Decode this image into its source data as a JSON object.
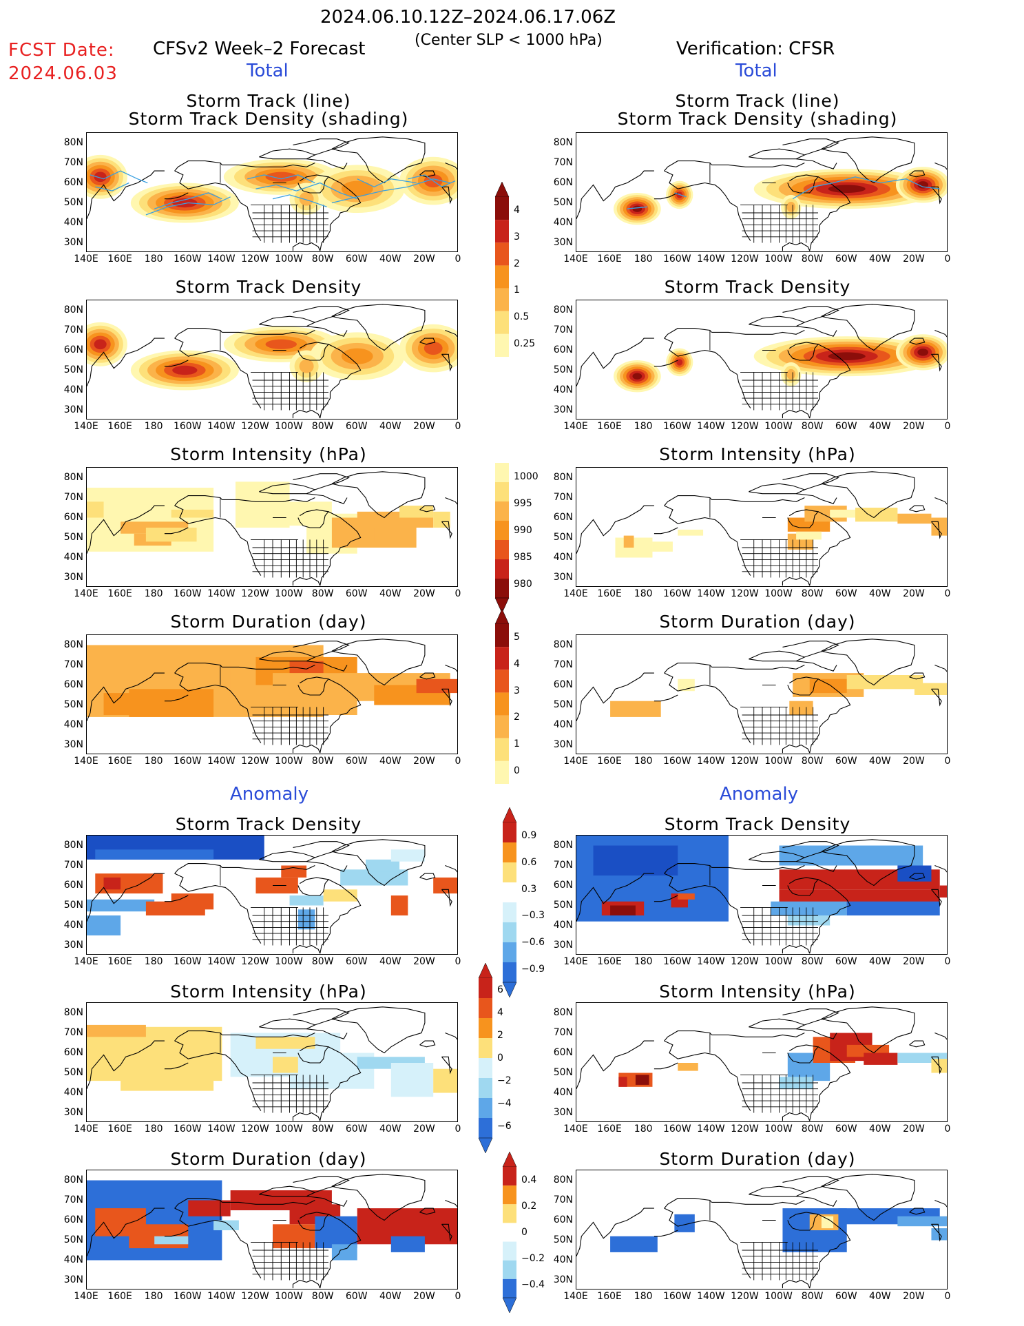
{
  "header": {
    "period": "2024.06.10.12Z–2024.06.17.06Z",
    "fcst_label": "FCST Date:",
    "fcst_date": "2024.06.03",
    "model": "CFSv2 Week–2 Forecast",
    "criterion": "(Center SLP < 1000 hPa)",
    "verification": "Verification: CFSR",
    "total_left": "Total",
    "total_right": "Total",
    "anomaly_left": "Anomaly",
    "anomaly_right": "Anomaly"
  },
  "axes": {
    "lon_ticks": [
      "140E",
      "160E",
      "180",
      "160W",
      "140W",
      "120W",
      "100W",
      "80W",
      "60W",
      "40W",
      "20W",
      "0"
    ],
    "lat_ticks": [
      "80N",
      "70N",
      "60N",
      "50N",
      "40N",
      "30N"
    ]
  },
  "panels": {
    "track_title_line1": "Storm Track (line)",
    "track_title_line2": "Storm Track Density (shading)",
    "density_title": "Storm Track Density",
    "intensity_title": "Storm Intensity (hPa)",
    "duration_title": "Storm Duration (day)"
  },
  "colorbars": {
    "density": [
      "4",
      "3",
      "2",
      "1",
      "0.5",
      "0.25"
    ],
    "intensity": [
      "1000",
      "995",
      "990",
      "985",
      "980"
    ],
    "duration": [
      "5",
      "4",
      "3",
      "2",
      "1",
      "0"
    ],
    "anom_density": [
      "0.9",
      "0.6",
      "0.3",
      "−0.3",
      "−0.6",
      "−0.9"
    ],
    "anom_intensity": [
      "6",
      "4",
      "2",
      "0",
      "−2",
      "−4",
      "−6"
    ],
    "anom_duration": [
      "0.4",
      "0.2",
      "0",
      "−0.2",
      "−0.4"
    ]
  },
  "colors": {
    "warm": [
      "#fff7b0",
      "#fde07a",
      "#fbb34a",
      "#f7931e",
      "#e8561c",
      "#c8231a",
      "#8b0e0a"
    ],
    "cool": [
      "#d6f1fa",
      "#9fd8f0",
      "#5ea7e8",
      "#2d6fd8",
      "#1a4fc4"
    ],
    "track_line": "#3aa0e0",
    "land_line": "#000000"
  }
}
